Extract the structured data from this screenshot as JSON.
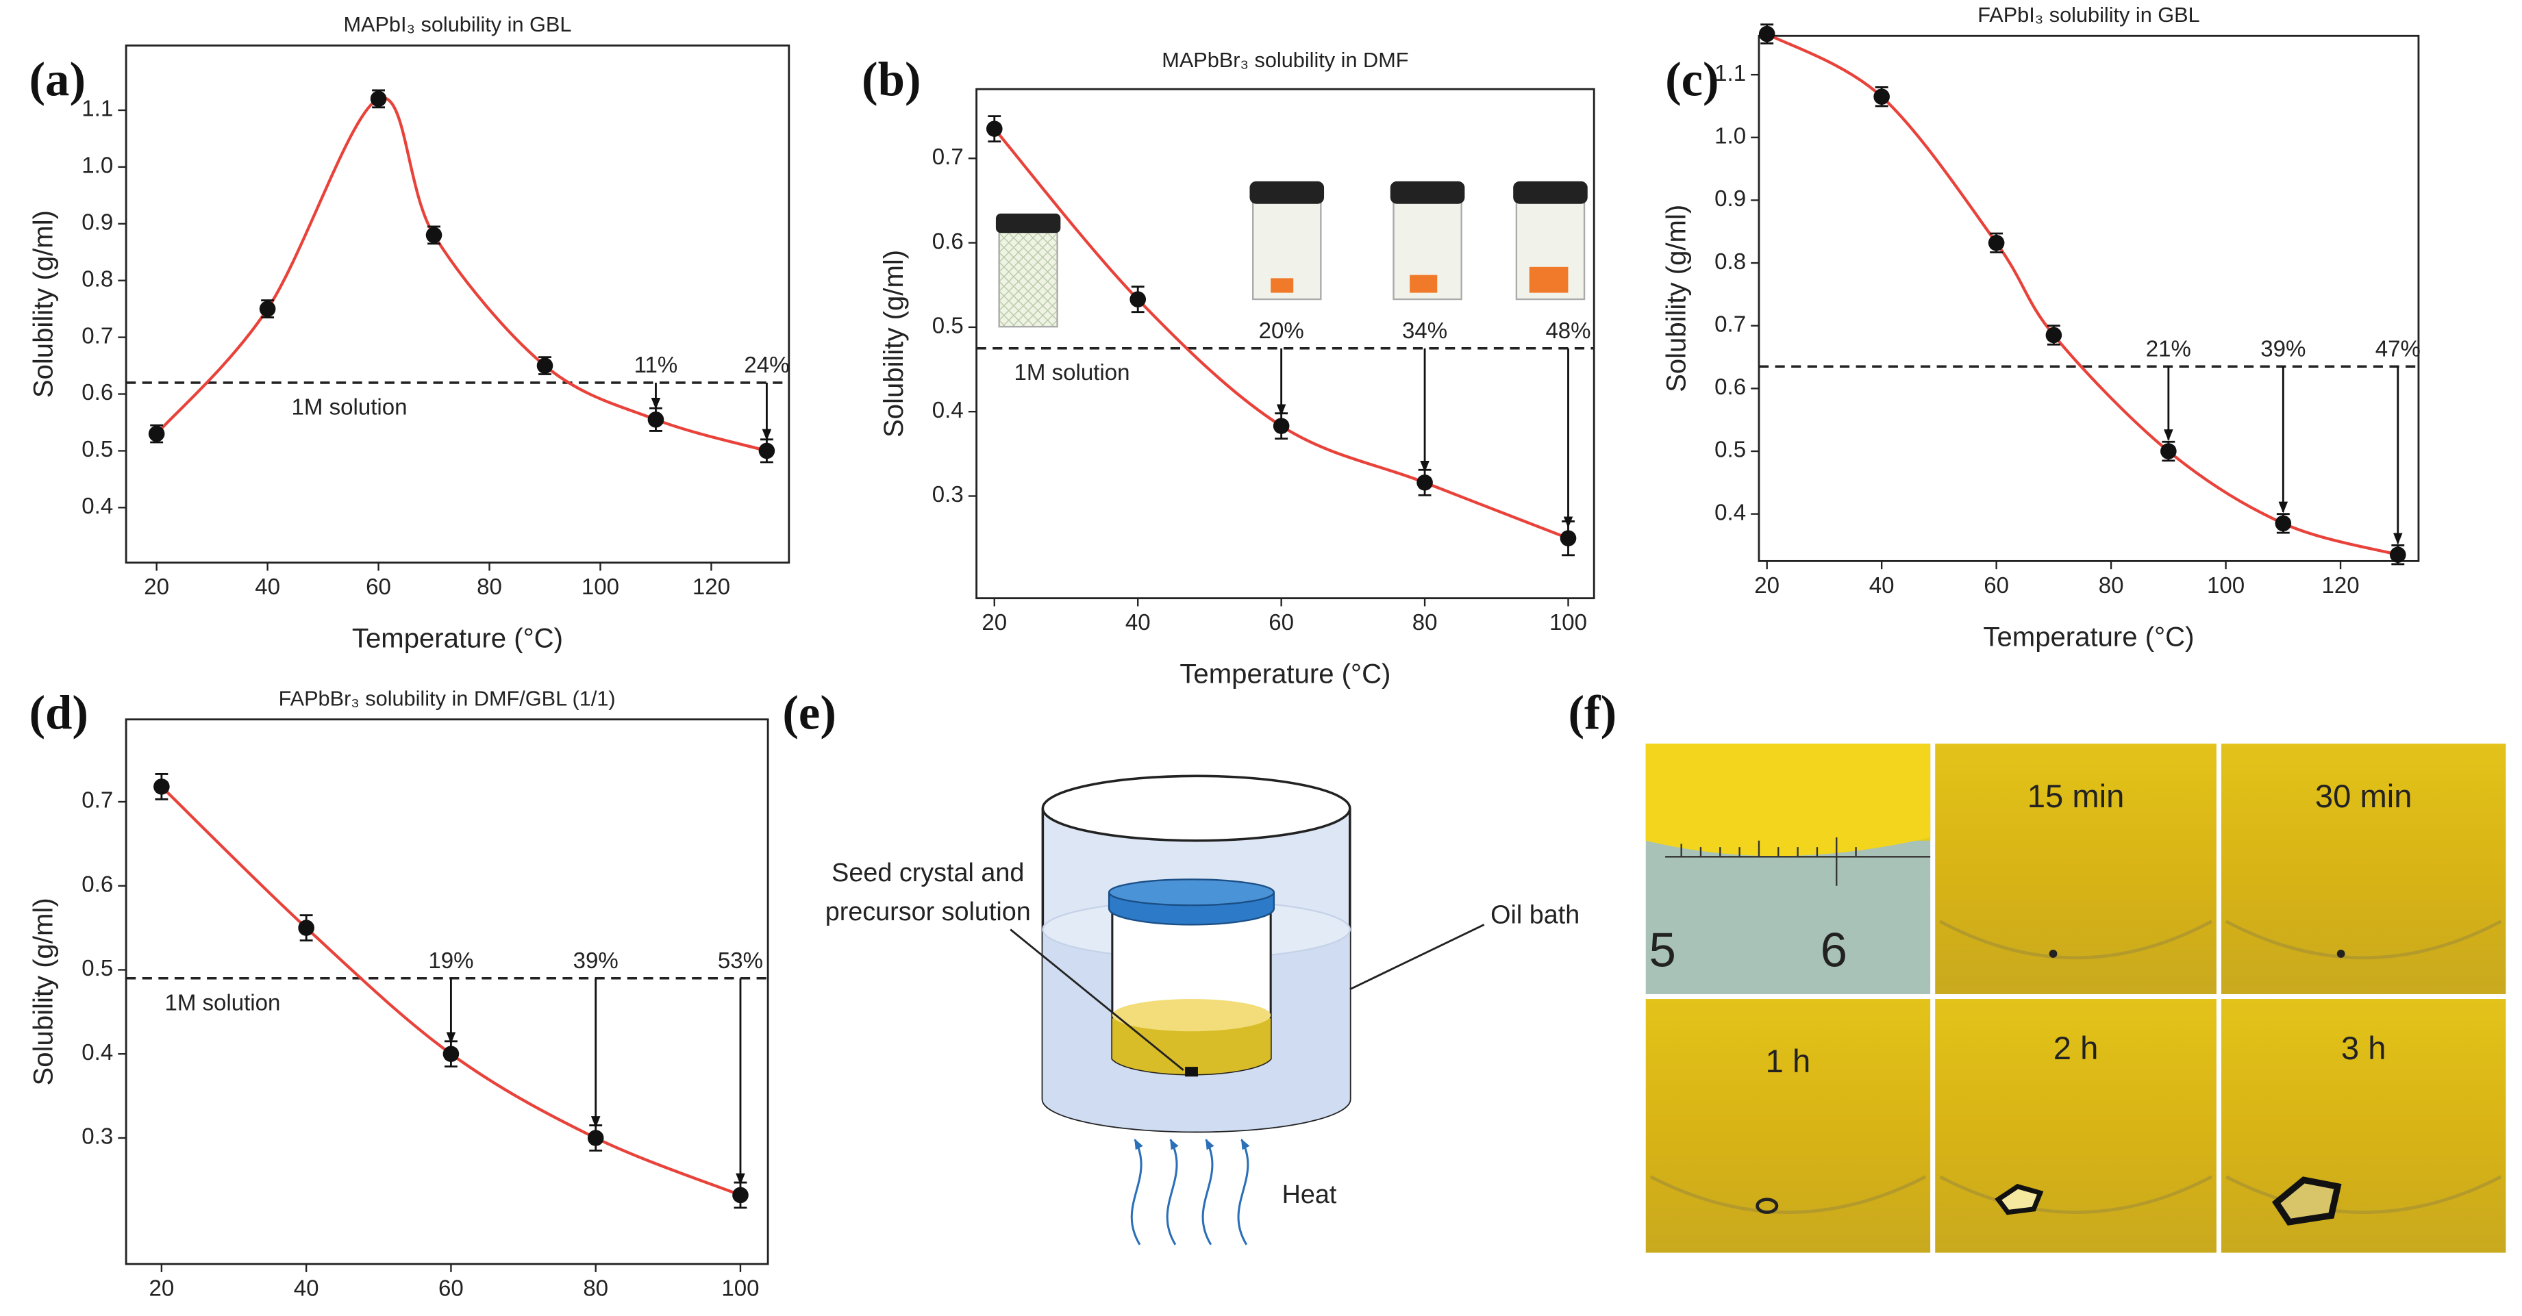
{
  "panel_labels": [
    "(a)",
    "(b)",
    "(c)",
    "(d)",
    "(e)",
    "(f)"
  ],
  "chart_data": [
    {
      "type": "line",
      "title": "MAPbI₃ solubility in GBL",
      "xlabel": "Temperature (°C)",
      "ylabel": "Solubility (g/ml)",
      "x": [
        20,
        40,
        60,
        70,
        90,
        110,
        130
      ],
      "values": [
        0.53,
        0.75,
        1.12,
        0.88,
        0.65,
        0.555,
        0.5
      ],
      "errors": [
        0.015,
        0.015,
        0.015,
        0.015,
        0.015,
        0.02,
        0.02
      ],
      "color": "#e8423a",
      "xlim": [
        14.5,
        134
      ],
      "ylim": [
        0.303,
        1.214
      ],
      "xticks": [
        20,
        40,
        60,
        80,
        100,
        120
      ],
      "yticks": [
        0.4,
        0.5,
        0.6,
        0.7,
        0.8,
        0.9,
        {
          "value": 1,
          "label": "1.0"
        },
        1.1
      ],
      "reference": {
        "value": 0.62,
        "label": "1M solution"
      },
      "annotations": [
        {
          "x": 110,
          "label": "11%"
        },
        {
          "x": 130,
          "label": "24%"
        }
      ]
    },
    {
      "type": "line",
      "title": "MAPbBr₃ solubility in DMF",
      "xlabel": "Temperature (°C)",
      "ylabel": "Solubility (g/ml)",
      "x": [
        20,
        40,
        60,
        80,
        100
      ],
      "values": [
        0.735,
        0.533,
        0.383,
        0.316,
        0.25
      ],
      "errors": [
        0.015,
        0.015,
        0.015,
        0.015,
        0.02
      ],
      "color": "#e8423a",
      "xlim": [
        17.5,
        103.6
      ],
      "ylim": [
        0.179,
        0.782
      ],
      "xticks": [
        20,
        40,
        60,
        80,
        100
      ],
      "yticks": [
        0.3,
        0.4,
        0.5,
        0.6,
        0.7
      ],
      "reference": {
        "value": 0.475,
        "label": "1M solution"
      },
      "annotations": [
        {
          "x": 60,
          "label": "20%"
        },
        {
          "x": 80,
          "label": "34%"
        },
        {
          "x": 100,
          "label": "48%"
        }
      ]
    },
    {
      "type": "line",
      "title": "FAPbI₃ solubility in GBL",
      "xlabel": "Temperature (°C)",
      "ylabel": "Solubility (g/ml)",
      "x": [
        20,
        40,
        60,
        70,
        90,
        110,
        130
      ],
      "values": [
        1.165,
        1.065,
        0.832,
        0.685,
        0.5,
        0.385,
        0.335
      ],
      "errors": [
        0.015,
        0.015,
        0.015,
        0.015,
        0.015,
        0.015,
        0.015
      ],
      "color": "#e8423a",
      "xlim": [
        18.6,
        133.6
      ],
      "ylim": [
        0.325,
        1.162
      ],
      "xticks": [
        20,
        40,
        60,
        80,
        100,
        120
      ],
      "yticks": [
        0.4,
        0.5,
        0.6,
        0.7,
        0.8,
        0.9,
        {
          "value": 1,
          "label": "1.0"
        },
        1.1
      ],
      "reference": {
        "value": 0.635
      },
      "annotations": [
        {
          "x": 90,
          "label": "21%"
        },
        {
          "x": 110,
          "label": "39%"
        },
        {
          "x": 130,
          "label": "47%"
        }
      ]
    },
    {
      "type": "line",
      "title": "FAPbBr₃ solubility in DMF/GBL (1/1)",
      "xlabel": "Temperature (°C)",
      "ylabel": "Solubility (g/ml)",
      "x": [
        20,
        40,
        60,
        80,
        100
      ],
      "values": [
        0.718,
        0.55,
        0.4,
        0.3,
        0.232
      ],
      "errors": [
        0.015,
        0.015,
        0.015,
        0.015,
        0.015
      ],
      "color": "#e8423a",
      "xlim": [
        15.1,
        103.8
      ],
      "ylim": [
        0.15,
        0.798
      ],
      "xticks": [
        20,
        40,
        60,
        80,
        100
      ],
      "yticks": [
        0.3,
        0.4,
        0.5,
        0.6,
        0.7
      ],
      "reference": {
        "value": 0.49,
        "label": "1M solution"
      },
      "annotations": [
        {
          "x": 60,
          "label": "19%"
        },
        {
          "x": 80,
          "label": "39%"
        },
        {
          "x": 100,
          "label": "53%"
        }
      ]
    }
  ],
  "diagram": {
    "vial_label_lines": [
      "Seed crystal and",
      "precursor solution"
    ],
    "bath_label": "Oil bath",
    "heat_label": "Heat"
  },
  "photos": {
    "ruler_labels": [
      "5",
      "6"
    ],
    "times": [
      "15 min",
      "30 min",
      "1 h",
      "2 h",
      "3 h"
    ]
  }
}
